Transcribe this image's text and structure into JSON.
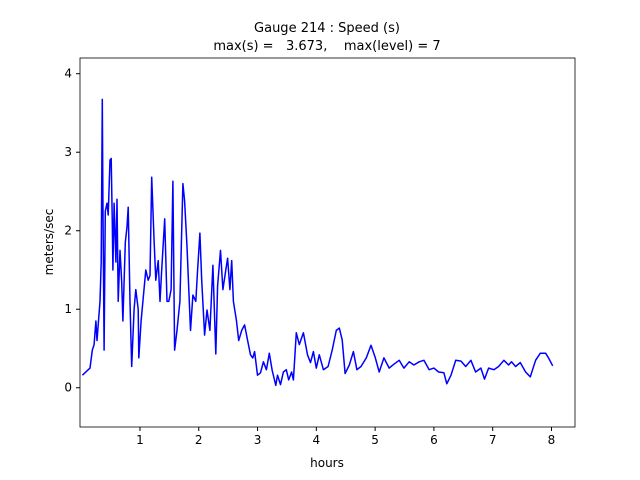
{
  "chart_data": {
    "type": "line",
    "title": "Gauge 214 : Speed (s)",
    "subtitle": "max(s) =   3.673,    max(level) = 7",
    "xlabel": "hours",
    "ylabel": "meters/sec",
    "color": "#0000ff",
    "x": [
      0.02,
      0.15,
      0.19,
      0.22,
      0.25,
      0.27,
      0.29,
      0.32,
      0.34,
      0.36,
      0.37,
      0.39,
      0.41,
      0.44,
      0.46,
      0.49,
      0.51,
      0.53,
      0.54,
      0.56,
      0.59,
      0.61,
      0.63,
      0.66,
      0.69,
      0.71,
      0.75,
      0.78,
      0.8,
      0.83,
      0.85,
      0.86,
      0.9,
      0.93,
      0.97,
      0.98,
      1.02,
      1.05,
      1.1,
      1.14,
      1.17,
      1.2,
      1.24,
      1.27,
      1.31,
      1.34,
      1.37,
      1.42,
      1.46,
      1.49,
      1.53,
      1.56,
      1.59,
      1.63,
      1.68,
      1.73,
      1.76,
      1.8,
      1.83,
      1.86,
      1.9,
      1.95,
      1.98,
      2.02,
      2.05,
      2.1,
      2.14,
      2.19,
      2.24,
      2.29,
      2.32,
      2.37,
      2.41,
      2.46,
      2.49,
      2.53,
      2.56,
      2.59,
      2.64,
      2.68,
      2.73,
      2.78,
      2.83,
      2.88,
      2.92,
      2.95,
      3.0,
      3.05,
      3.1,
      3.15,
      3.2,
      3.25,
      3.31,
      3.34,
      3.39,
      3.44,
      3.49,
      3.53,
      3.58,
      3.61,
      3.66,
      3.71,
      3.78,
      3.85,
      3.9,
      3.95,
      4.0,
      4.05,
      4.12,
      4.2,
      4.27,
      4.34,
      4.39,
      4.44,
      4.49,
      4.56,
      4.63,
      4.69,
      4.76,
      4.85,
      4.93,
      5.0,
      5.07,
      5.15,
      5.24,
      5.32,
      5.41,
      5.49,
      5.58,
      5.66,
      5.75,
      5.83,
      5.92,
      6.0,
      6.08,
      6.17,
      6.22,
      6.29,
      6.37,
      6.46,
      6.54,
      6.63,
      6.71,
      6.8,
      6.86,
      6.93,
      7.02,
      7.1,
      7.19,
      7.27,
      7.32,
      7.39,
      7.47,
      7.56,
      7.64,
      7.73,
      7.81,
      7.9,
      7.95,
      8.02
    ],
    "values": [
      0.16,
      0.25,
      0.48,
      0.55,
      0.85,
      0.6,
      0.8,
      1.1,
      1.6,
      3.673,
      2.4,
      0.48,
      2.25,
      2.35,
      2.2,
      2.9,
      2.92,
      2.1,
      1.5,
      2.35,
      1.6,
      2.4,
      1.1,
      1.75,
      1.35,
      0.85,
      1.85,
      2.05,
      2.3,
      1.1,
      0.55,
      0.27,
      1.0,
      1.25,
      1.0,
      0.38,
      0.85,
      1.1,
      1.5,
      1.37,
      1.43,
      2.68,
      1.87,
      1.37,
      1.62,
      1.1,
      1.5,
      2.15,
      1.1,
      1.1,
      1.25,
      2.63,
      0.48,
      0.73,
      1.1,
      2.6,
      2.38,
      1.8,
      1.25,
      0.73,
      1.18,
      1.1,
      1.5,
      1.97,
      1.37,
      0.67,
      0.99,
      0.73,
      1.56,
      0.43,
      1.3,
      1.75,
      1.25,
      1.5,
      1.65,
      1.25,
      1.62,
      1.1,
      0.86,
      0.6,
      0.73,
      0.8,
      0.61,
      0.42,
      0.38,
      0.46,
      0.16,
      0.19,
      0.33,
      0.23,
      0.44,
      0.22,
      0.03,
      0.16,
      0.04,
      0.2,
      0.23,
      0.1,
      0.2,
      0.1,
      0.7,
      0.55,
      0.7,
      0.42,
      0.32,
      0.46,
      0.25,
      0.42,
      0.23,
      0.27,
      0.48,
      0.73,
      0.76,
      0.61,
      0.18,
      0.29,
      0.46,
      0.23,
      0.27,
      0.38,
      0.54,
      0.39,
      0.2,
      0.38,
      0.25,
      0.3,
      0.35,
      0.25,
      0.33,
      0.29,
      0.33,
      0.35,
      0.23,
      0.25,
      0.2,
      0.19,
      0.05,
      0.16,
      0.35,
      0.34,
      0.27,
      0.35,
      0.2,
      0.25,
      0.11,
      0.25,
      0.23,
      0.27,
      0.35,
      0.29,
      0.33,
      0.27,
      0.32,
      0.2,
      0.14,
      0.35,
      0.44,
      0.44,
      0.38,
      0.28
    ],
    "xlim": [
      -0.02,
      8.4
    ],
    "ylim": [
      -0.5,
      4.2
    ],
    "xticks": [
      1,
      2,
      3,
      4,
      5,
      6,
      7,
      8
    ],
    "yticks": [
      0,
      1,
      2,
      3,
      4
    ]
  }
}
